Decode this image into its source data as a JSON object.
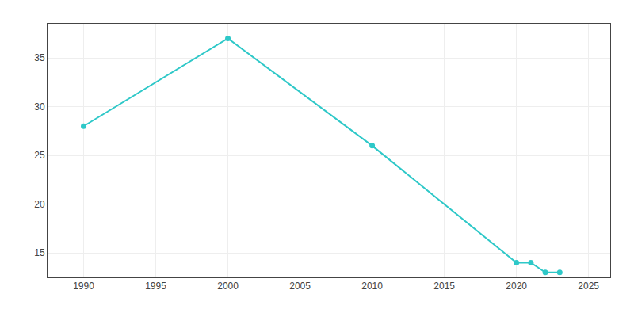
{
  "chart_data": {
    "type": "line",
    "x": [
      1990,
      2000,
      2010,
      2020,
      2021,
      2022,
      2023
    ],
    "values": [
      28,
      37,
      26,
      14,
      14,
      13,
      13
    ],
    "color": "#2ec8c8",
    "marker": "circle",
    "xlim": [
      1987.5,
      2026.5
    ],
    "xticks": [
      1990,
      1995,
      2000,
      2005,
      2010,
      2015,
      2020,
      2025
    ],
    "ylim": [
      12.5,
      38.5
    ],
    "yticks": [
      15,
      20,
      25,
      30,
      35
    ],
    "grid": true
  }
}
